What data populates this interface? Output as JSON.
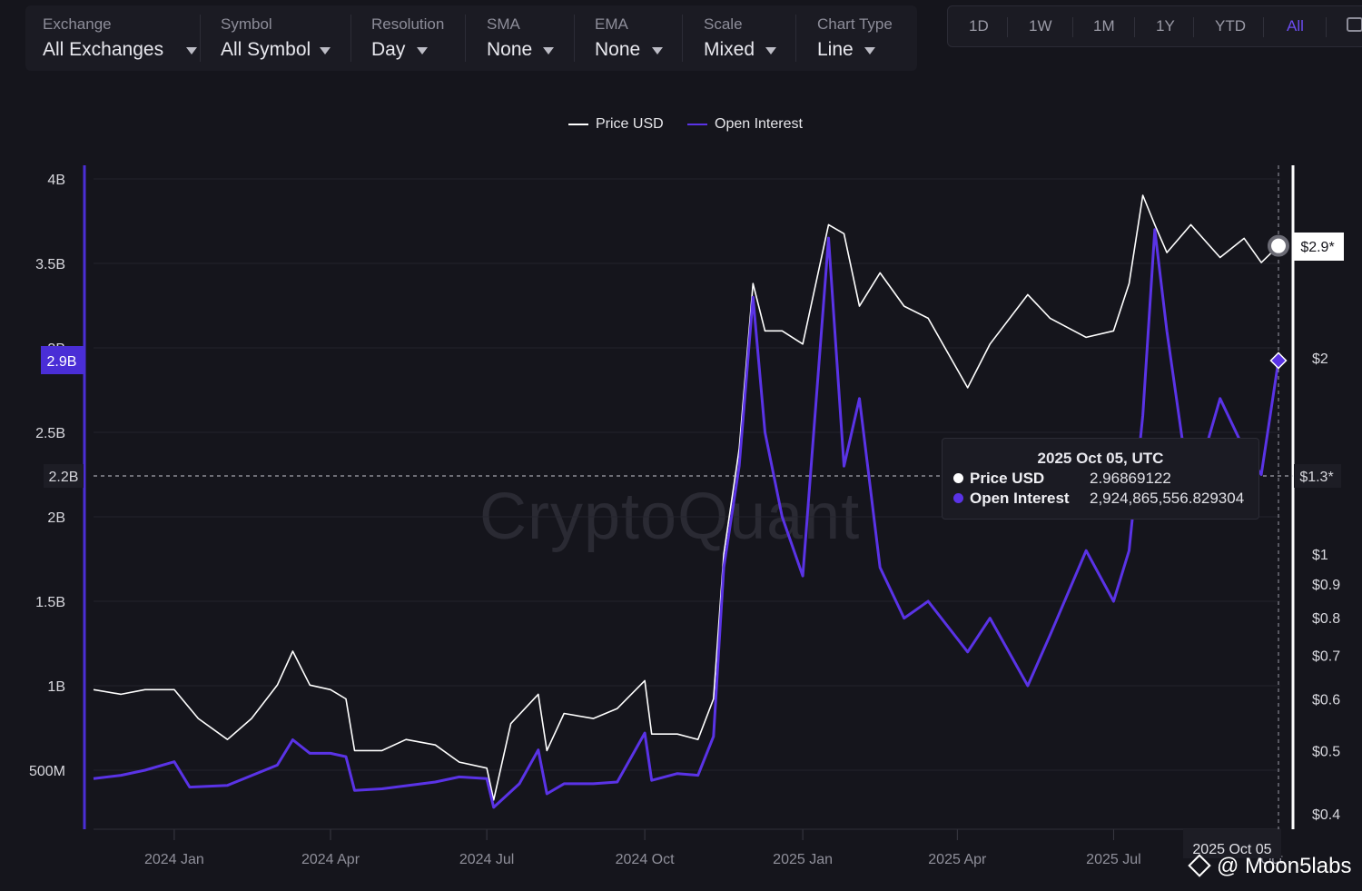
{
  "filters": [
    {
      "label": "Exchange",
      "value": "All Exchanges"
    },
    {
      "label": "Symbol",
      "value": "All Symbol"
    },
    {
      "label": "Resolution",
      "value": "Day"
    },
    {
      "label": "SMA",
      "value": "None"
    },
    {
      "label": "EMA",
      "value": "None"
    },
    {
      "label": "Scale",
      "value": "Mixed"
    },
    {
      "label": "Chart Type",
      "value": "Line"
    }
  ],
  "ranges": [
    "1D",
    "1W",
    "1M",
    "1Y",
    "YTD",
    "All"
  ],
  "active_range": "All",
  "legend": {
    "price": "Price USD",
    "oi": "Open Interest"
  },
  "watermark": "CryptoQuant",
  "tooltip": {
    "title": "2025 Oct 05, UTC",
    "price_name": "Price USD",
    "price_value": "2.96869122",
    "oi_name": "Open Interest",
    "oi_value": "2,924,865,556.829304"
  },
  "crosshair": {
    "oi_label": "2.2B",
    "price_label": "$1.3*",
    "date_label": "2025 Oct 05"
  },
  "current_labels": {
    "oi": "2.9B",
    "price": "$2.9*"
  },
  "credit": "@ Moon5labs",
  "colors": {
    "price": "#ffffff",
    "oi": "#5a33e6",
    "accent": "#6b4cf0",
    "background": "#15151c"
  },
  "chart_data": {
    "type": "line",
    "x_ticks": [
      "2024 Jan",
      "2024 Apr",
      "2024 Jul",
      "2024 Oct",
      "2025 Jan",
      "2025 Apr",
      "2025 Jul",
      "Oct"
    ],
    "left_axis": {
      "label": "Open Interest",
      "ticks": [
        "4B",
        "3.5B",
        "3B",
        "2.5B",
        "2B",
        "1.5B",
        "1B",
        "500M"
      ],
      "ylim": [
        0,
        4000000000
      ]
    },
    "right_axis": {
      "label": "Price USD",
      "scale": "log",
      "ticks": [
        "$2",
        "$1",
        "$0.9",
        "$0.8",
        "$0.7",
        "$0.6",
        "$0.5",
        "$0.4"
      ]
    },
    "series": [
      {
        "name": "Price USD",
        "axis": "right",
        "points": [
          [
            "2023-11-15",
            0.62
          ],
          [
            "2023-12-01",
            0.61
          ],
          [
            "2023-12-15",
            0.62
          ],
          [
            "2024-01-01",
            0.62
          ],
          [
            "2024-01-15",
            0.56
          ],
          [
            "2024-02-01",
            0.52
          ],
          [
            "2024-02-15",
            0.56
          ],
          [
            "2024-03-01",
            0.63
          ],
          [
            "2024-03-10",
            0.71
          ],
          [
            "2024-03-20",
            0.63
          ],
          [
            "2024-04-01",
            0.62
          ],
          [
            "2024-04-10",
            0.6
          ],
          [
            "2024-04-15",
            0.5
          ],
          [
            "2024-05-01",
            0.5
          ],
          [
            "2024-05-15",
            0.52
          ],
          [
            "2024-06-01",
            0.51
          ],
          [
            "2024-06-15",
            0.48
          ],
          [
            "2024-07-01",
            0.47
          ],
          [
            "2024-07-05",
            0.42
          ],
          [
            "2024-07-15",
            0.55
          ],
          [
            "2024-07-31",
            0.61
          ],
          [
            "2024-08-05",
            0.5
          ],
          [
            "2024-08-15",
            0.57
          ],
          [
            "2024-09-01",
            0.56
          ],
          [
            "2024-09-15",
            0.58
          ],
          [
            "2024-10-01",
            0.64
          ],
          [
            "2024-10-05",
            0.53
          ],
          [
            "2024-10-20",
            0.53
          ],
          [
            "2024-11-01",
            0.52
          ],
          [
            "2024-11-10",
            0.6
          ],
          [
            "2024-11-16",
            1.0
          ],
          [
            "2024-11-25",
            1.45
          ],
          [
            "2024-12-03",
            2.6
          ],
          [
            "2024-12-10",
            2.2
          ],
          [
            "2024-12-20",
            2.2
          ],
          [
            "2025-01-01",
            2.1
          ],
          [
            "2025-01-16",
            3.2
          ],
          [
            "2025-01-25",
            3.1
          ],
          [
            "2025-02-03",
            2.4
          ],
          [
            "2025-02-15",
            2.7
          ],
          [
            "2025-03-01",
            2.4
          ],
          [
            "2025-03-15",
            2.3
          ],
          [
            "2025-04-07",
            1.8
          ],
          [
            "2025-04-20",
            2.1
          ],
          [
            "2025-05-12",
            2.5
          ],
          [
            "2025-05-25",
            2.3
          ],
          [
            "2025-06-15",
            2.15
          ],
          [
            "2025-07-01",
            2.2
          ],
          [
            "2025-07-10",
            2.6
          ],
          [
            "2025-07-18",
            3.55
          ],
          [
            "2025-07-25",
            3.2
          ],
          [
            "2025-08-01",
            2.9
          ],
          [
            "2025-08-15",
            3.2
          ],
          [
            "2025-09-01",
            2.85
          ],
          [
            "2025-09-15",
            3.05
          ],
          [
            "2025-09-25",
            2.8
          ],
          [
            "2025-10-05",
            2.97
          ]
        ]
      },
      {
        "name": "Open Interest",
        "axis": "left",
        "points": [
          [
            "2023-11-15",
            450000000
          ],
          [
            "2023-12-01",
            470000000
          ],
          [
            "2023-12-15",
            500000000
          ],
          [
            "2024-01-01",
            550000000
          ],
          [
            "2024-01-10",
            400000000
          ],
          [
            "2024-02-01",
            410000000
          ],
          [
            "2024-03-01",
            530000000
          ],
          [
            "2024-03-10",
            680000000
          ],
          [
            "2024-03-20",
            600000000
          ],
          [
            "2024-04-01",
            600000000
          ],
          [
            "2024-04-10",
            580000000
          ],
          [
            "2024-04-15",
            380000000
          ],
          [
            "2024-05-01",
            390000000
          ],
          [
            "2024-06-01",
            430000000
          ],
          [
            "2024-06-15",
            460000000
          ],
          [
            "2024-07-01",
            450000000
          ],
          [
            "2024-07-05",
            280000000
          ],
          [
            "2024-07-20",
            420000000
          ],
          [
            "2024-07-31",
            620000000
          ],
          [
            "2024-08-05",
            360000000
          ],
          [
            "2024-08-15",
            420000000
          ],
          [
            "2024-09-01",
            420000000
          ],
          [
            "2024-09-15",
            430000000
          ],
          [
            "2024-10-01",
            720000000
          ],
          [
            "2024-10-05",
            440000000
          ],
          [
            "2024-10-20",
            480000000
          ],
          [
            "2024-11-01",
            470000000
          ],
          [
            "2024-11-10",
            700000000
          ],
          [
            "2024-11-16",
            1700000000
          ],
          [
            "2024-11-25",
            2300000000
          ],
          [
            "2024-12-03",
            3300000000
          ],
          [
            "2024-12-10",
            2500000000
          ],
          [
            "2024-12-20",
            2000000000
          ],
          [
            "2025-01-01",
            1650000000
          ],
          [
            "2025-01-16",
            3650000000
          ],
          [
            "2025-01-25",
            2300000000
          ],
          [
            "2025-02-03",
            2700000000
          ],
          [
            "2025-02-15",
            1700000000
          ],
          [
            "2025-03-01",
            1400000000
          ],
          [
            "2025-03-15",
            1500000000
          ],
          [
            "2025-04-07",
            1200000000
          ],
          [
            "2025-04-20",
            1400000000
          ],
          [
            "2025-05-12",
            1000000000
          ],
          [
            "2025-05-25",
            1300000000
          ],
          [
            "2025-06-15",
            1800000000
          ],
          [
            "2025-07-01",
            1500000000
          ],
          [
            "2025-07-10",
            1800000000
          ],
          [
            "2025-07-18",
            2600000000
          ],
          [
            "2025-07-25",
            3700000000
          ],
          [
            "2025-08-01",
            3100000000
          ],
          [
            "2025-08-15",
            2100000000
          ],
          [
            "2025-09-01",
            2700000000
          ],
          [
            "2025-09-15",
            2400000000
          ],
          [
            "2025-09-25",
            2250000000
          ],
          [
            "2025-10-05",
            2924865556
          ]
        ]
      }
    ]
  }
}
